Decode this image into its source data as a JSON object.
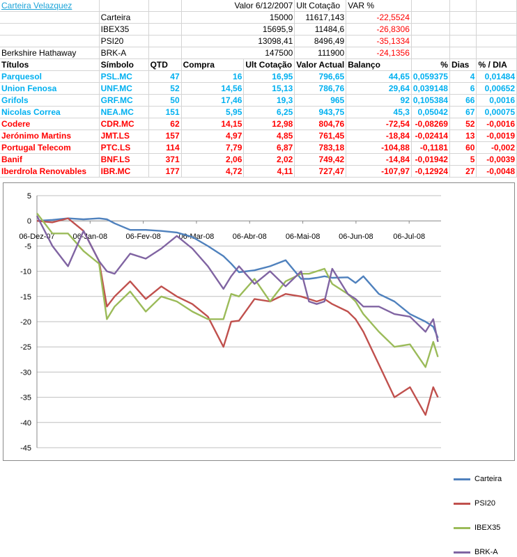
{
  "sheet_title": "Carteira Velazquez",
  "summary_header": {
    "c3": "Valor 6/12/2007",
    "c4": "Ult Cotação",
    "c5": "VAR %"
  },
  "summary": [
    {
      "name": "",
      "sym": "Carteira",
      "v1": "15000",
      "v2": "11617,143",
      "var": "-22,5524"
    },
    {
      "name": "",
      "sym": "IBEX35",
      "v1": "15695,9",
      "v2": "11484,6",
      "var": "-26,8306"
    },
    {
      "name": "",
      "sym": "PSI20",
      "v1": "13098,41",
      "v2": "8496,49",
      "var": "-35,1334"
    },
    {
      "name": "Berkshire Hathaway",
      "sym": "BRK-A",
      "v1": "147500",
      "v2": "111900",
      "var": "-24,1356"
    }
  ],
  "table_header": [
    "Títulos",
    "Símbolo",
    "QTD",
    "Compra",
    "Ult Cotação",
    "Valor Actual",
    "Balanço",
    "%",
    "Dias",
    "% / DIA"
  ],
  "stocks": [
    {
      "name": "Parquesol",
      "sym": "PSL.MC",
      "qtd": "47",
      "compra": "16",
      "ult": "16,95",
      "valor": "796,65",
      "bal": "44,65",
      "pct": "0,059375",
      "dias": "4",
      "pd": "0,01484",
      "neg": false
    },
    {
      "name": "Union Fenosa",
      "sym": "UNF.MC",
      "qtd": "52",
      "compra": "14,56",
      "ult": "15,13",
      "valor": "786,76",
      "bal": "29,64",
      "pct": "0,039148",
      "dias": "6",
      "pd": "0,00652",
      "neg": false
    },
    {
      "name": "Grifols",
      "sym": "GRF.MC",
      "qtd": "50",
      "compra": "17,46",
      "ult": "19,3",
      "valor": "965",
      "bal": "92",
      "pct": "0,105384",
      "dias": "66",
      "pd": "0,0016",
      "neg": false
    },
    {
      "name": "Nicolas Correa",
      "sym": "NEA.MC",
      "qtd": "151",
      "compra": "5,95",
      "ult": "6,25",
      "valor": "943,75",
      "bal": "45,3",
      "pct": "0,05042",
      "dias": "67",
      "pd": "0,00075",
      "neg": false
    },
    {
      "name": "Codere",
      "sym": "CDR.MC",
      "qtd": "62",
      "compra": "14,15",
      "ult": "12,98",
      "valor": "804,76",
      "bal": "-72,54",
      "pct": "-0,08269",
      "dias": "52",
      "pd": "-0,0016",
      "neg": true
    },
    {
      "name": "Jerónimo Martins",
      "sym": "JMT.LS",
      "qtd": "157",
      "compra": "4,97",
      "ult": "4,85",
      "valor": "761,45",
      "bal": "-18,84",
      "pct": "-0,02414",
      "dias": "13",
      "pd": "-0,0019",
      "neg": true
    },
    {
      "name": "Portugal Telecom",
      "sym": "PTC.LS",
      "qtd": "114",
      "compra": "7,79",
      "ult": "6,87",
      "valor": "783,18",
      "bal": "-104,88",
      "pct": "-0,1181",
      "dias": "60",
      "pd": "-0,002",
      "neg": true
    },
    {
      "name": "Banif",
      "sym": "BNF.LS",
      "qtd": "371",
      "compra": "2,06",
      "ult": "2,02",
      "valor": "749,42",
      "bal": "-14,84",
      "pct": "-0,01942",
      "dias": "5",
      "pd": "-0,0039",
      "neg": true
    },
    {
      "name": "Iberdrola Renovables",
      "sym": "IBR.MC",
      "qtd": "177",
      "compra": "4,72",
      "ult": "4,11",
      "valor": "727,47",
      "bal": "-107,97",
      "pct": "-0,12924",
      "dias": "27",
      "pd": "-0,0048",
      "neg": true
    }
  ],
  "chart_data": {
    "type": "line",
    "x_labels": [
      "06-Dez-07",
      "06-Jan-08",
      "06-Fev-08",
      "06-Mar-08",
      "06-Abr-08",
      "06-Mai-08",
      "06-Jun-08",
      "06-Jul-08"
    ],
    "x_range": [
      0,
      260
    ],
    "ylim": [
      -45,
      5
    ],
    "y_ticks": [
      5,
      0,
      -5,
      -10,
      -15,
      -20,
      -25,
      -30,
      -35,
      -40,
      -45
    ],
    "grid": true,
    "legend_position": "right",
    "series": [
      {
        "name": "Carteira",
        "color": "#4f81bd",
        "x": [
          0,
          10,
          20,
          30,
          40,
          45,
          50,
          60,
          70,
          80,
          90,
          100,
          110,
          120,
          125,
          130,
          140,
          150,
          160,
          170,
          175,
          180,
          185,
          190,
          200,
          205,
          210,
          220,
          230,
          240,
          250,
          255,
          258
        ],
        "y": [
          0,
          0.2,
          0.5,
          0.3,
          0.5,
          0.3,
          -0.5,
          -1.8,
          -1.8,
          -2.0,
          -2.3,
          -3.2,
          -5.0,
          -7.0,
          -8.5,
          -10.2,
          -9.8,
          -9.0,
          -7.8,
          -11.5,
          -11.5,
          -11.3,
          -11.0,
          -11.3,
          -11.2,
          -12.3,
          -11.0,
          -14.5,
          -16.0,
          -18.5,
          -20.0,
          -21.0,
          -23.2
        ]
      },
      {
        "name": "PSI20",
        "color": "#c0504d",
        "x": [
          0,
          10,
          20,
          30,
          40,
          45,
          50,
          60,
          70,
          80,
          90,
          100,
          110,
          120,
          125,
          130,
          140,
          150,
          160,
          170,
          175,
          180,
          185,
          190,
          200,
          205,
          210,
          220,
          230,
          240,
          250,
          255,
          258
        ],
        "y": [
          0,
          -0.3,
          0.5,
          -2.0,
          -8.0,
          -17.0,
          -15.0,
          -12.0,
          -15.5,
          -13.0,
          -15.0,
          -16.5,
          -19.0,
          -25.0,
          -20.0,
          -19.8,
          -15.5,
          -16.0,
          -14.5,
          -15.0,
          -15.5,
          -16.0,
          -15.5,
          -16.5,
          -18.0,
          -19.5,
          -22.0,
          -28.5,
          -35.0,
          -33.0,
          -38.5,
          -33.0,
          -35.0
        ]
      },
      {
        "name": "IBEX35",
        "color": "#9bbb59",
        "x": [
          0,
          10,
          20,
          30,
          40,
          45,
          50,
          60,
          70,
          80,
          90,
          100,
          110,
          120,
          125,
          130,
          140,
          150,
          160,
          170,
          175,
          180,
          185,
          190,
          200,
          205,
          210,
          220,
          230,
          240,
          250,
          255,
          258
        ],
        "y": [
          1.5,
          -2.5,
          -2.5,
          -6.0,
          -8.5,
          -19.5,
          -17.0,
          -14.0,
          -18.0,
          -15.0,
          -16.0,
          -18.0,
          -19.5,
          -19.5,
          -14.5,
          -15.0,
          -11.5,
          -16.0,
          -12.0,
          -10.5,
          -10.5,
          -10.0,
          -9.5,
          -12.5,
          -14.5,
          -16.0,
          -18.5,
          -22.0,
          -25.0,
          -24.5,
          -29.0,
          -24.0,
          -27.0
        ]
      },
      {
        "name": "BRK-A",
        "color": "#8064a2",
        "x": [
          0,
          10,
          20,
          30,
          40,
          45,
          50,
          60,
          70,
          80,
          90,
          100,
          110,
          120,
          125,
          130,
          140,
          150,
          160,
          170,
          175,
          180,
          185,
          190,
          200,
          205,
          210,
          220,
          230,
          240,
          250,
          255,
          258
        ],
        "y": [
          1.0,
          -5.0,
          -9.0,
          -2.0,
          -8.0,
          -10.0,
          -10.5,
          -6.5,
          -7.5,
          -5.5,
          -3.0,
          -5.5,
          -9.0,
          -13.5,
          -11.0,
          -9.0,
          -12.5,
          -10.0,
          -13.0,
          -10.0,
          -16.0,
          -16.5,
          -16.0,
          -9.5,
          -14.5,
          -15.5,
          -17.0,
          -17.0,
          -18.5,
          -19.0,
          -22.0,
          -19.5,
          -24.0
        ]
      }
    ]
  }
}
